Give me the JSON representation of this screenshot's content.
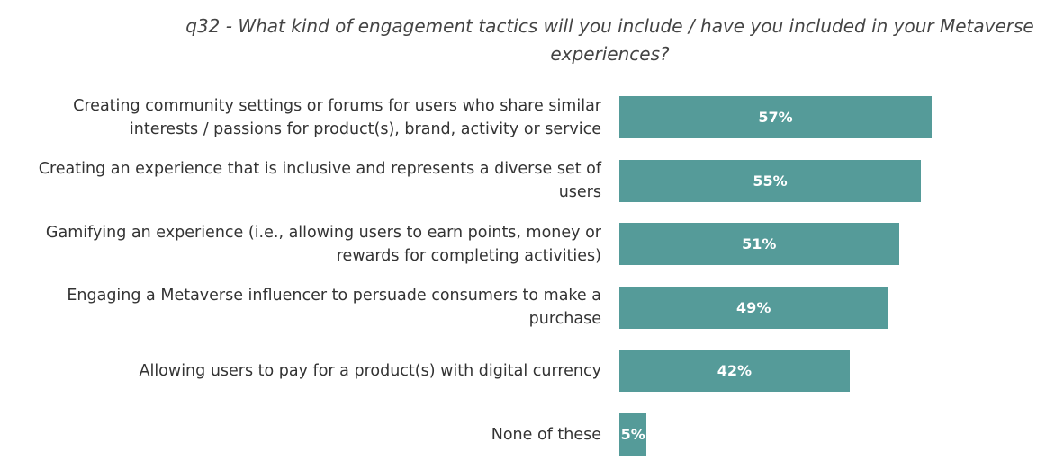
{
  "chart_data": {
    "type": "bar",
    "orientation": "horizontal",
    "title": "q32 - What kind of engagement tactics will you include / have you included in your Metaverse experiences?",
    "categories": [
      "Creating community settings or forums for users who share similar interests / passions for product(s), brand, activity or service",
      "Creating an experience that is inclusive and represents a diverse set of users",
      "Gamifying an experience (i.e., allowing users to earn points, money or rewards for completing activities)",
      "Engaging a Metaverse influencer to persuade consumers to make a purchase",
      "Allowing users to pay for a product(s) with digital currency",
      "None of these"
    ],
    "values": [
      57,
      55,
      51,
      49,
      42,
      5
    ],
    "value_labels": [
      "57%",
      "55%",
      "51%",
      "49%",
      "42%",
      "5%"
    ],
    "color": "#559b99"
  }
}
